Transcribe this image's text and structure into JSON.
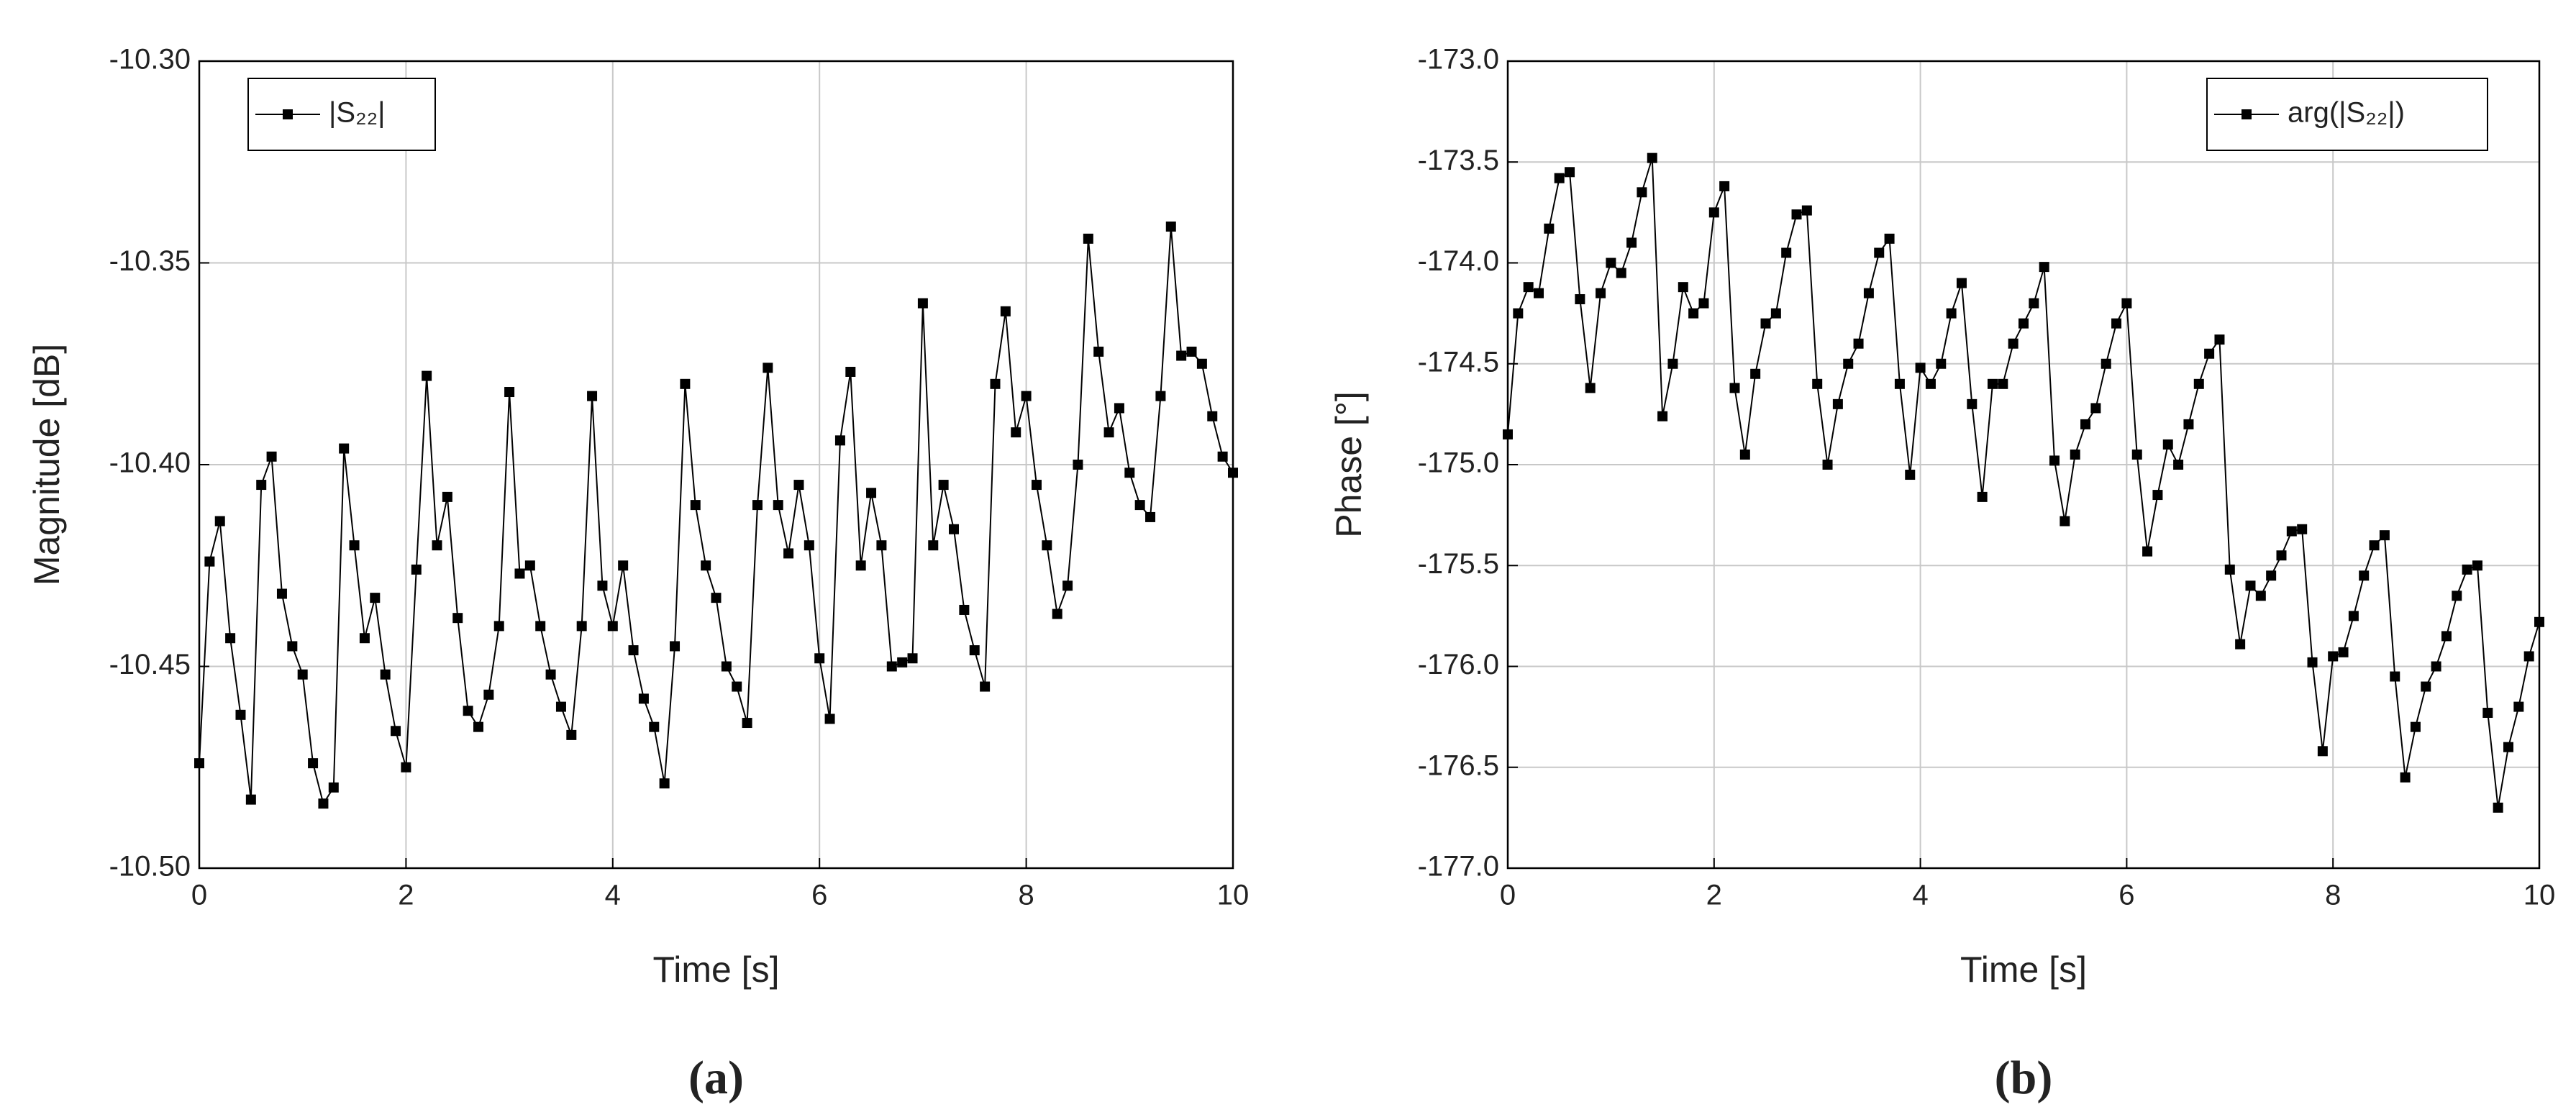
{
  "chart_data": [
    {
      "type": "line",
      "caption": "(a)",
      "xlabel": "Time [s]",
      "ylabel": "Magnitude [dB]",
      "x": [
        0,
        0.1,
        0.2,
        0.3,
        0.4,
        0.5,
        0.6,
        0.7,
        0.8,
        0.9,
        1,
        1.1,
        1.2,
        1.3,
        1.4,
        1.5,
        1.6,
        1.7,
        1.8,
        1.9,
        2,
        2.1,
        2.2,
        2.3,
        2.4,
        2.5,
        2.6,
        2.7,
        2.8,
        2.9,
        3,
        3.1,
        3.2,
        3.3,
        3.4,
        3.5,
        3.6,
        3.7,
        3.8,
        3.9,
        4,
        4.1,
        4.2,
        4.3,
        4.4,
        4.5,
        4.6,
        4.7,
        4.8,
        4.9,
        5,
        5.1,
        5.2,
        5.3,
        5.4,
        5.5,
        5.6,
        5.7,
        5.8,
        5.9,
        6,
        6.1,
        6.2,
        6.3,
        6.4,
        6.5,
        6.6,
        6.7,
        6.8,
        6.9,
        7,
        7.1,
        7.2,
        7.3,
        7.4,
        7.5,
        7.6,
        7.7,
        7.8,
        7.9,
        8,
        8.1,
        8.2,
        8.3,
        8.4,
        8.5,
        8.6,
        8.7,
        8.8,
        8.9,
        9,
        9.1,
        9.2,
        9.3,
        9.4,
        9.5,
        9.6,
        9.7,
        9.8,
        9.9,
        10
      ],
      "series": [
        {
          "name": "|S₂₂|",
          "color": "#000000",
          "values": [
            -10.474,
            -10.424,
            -10.414,
            -10.443,
            -10.462,
            -10.483,
            -10.405,
            -10.398,
            -10.432,
            -10.445,
            -10.452,
            -10.474,
            -10.484,
            -10.48,
            -10.396,
            -10.42,
            -10.443,
            -10.433,
            -10.452,
            -10.466,
            -10.475,
            -10.426,
            -10.378,
            -10.42,
            -10.408,
            -10.438,
            -10.461,
            -10.465,
            -10.457,
            -10.44,
            -10.382,
            -10.427,
            -10.425,
            -10.44,
            -10.452,
            -10.46,
            -10.467,
            -10.44,
            -10.383,
            -10.43,
            -10.44,
            -10.425,
            -10.446,
            -10.458,
            -10.465,
            -10.479,
            -10.445,
            -10.38,
            -10.41,
            -10.425,
            -10.433,
            -10.45,
            -10.455,
            -10.464,
            -10.41,
            -10.376,
            -10.41,
            -10.422,
            -10.405,
            -10.42,
            -10.448,
            -10.463,
            -10.394,
            -10.377,
            -10.425,
            -10.407,
            -10.42,
            -10.45,
            -10.449,
            -10.448,
            -10.36,
            -10.42,
            -10.405,
            -10.416,
            -10.436,
            -10.446,
            -10.455,
            -10.38,
            -10.362,
            -10.392,
            -10.383,
            -10.405,
            -10.42,
            -10.437,
            -10.43,
            -10.4,
            -10.344,
            -10.372,
            -10.392,
            -10.386,
            -10.402,
            -10.41,
            -10.413,
            -10.383,
            -10.341,
            -10.373,
            -10.372,
            -10.375,
            -10.388,
            -10.398,
            -10.402
          ]
        }
      ],
      "xlim": [
        0,
        10
      ],
      "xticks": [
        0,
        2,
        4,
        6,
        8,
        10
      ],
      "ylim": [
        -10.5,
        -10.3
      ],
      "yticks": [
        {
          "value": -10.5,
          "label": "-10.50"
        },
        -10.45,
        {
          "value": -10.4,
          "label": "-10.40"
        },
        -10.35,
        {
          "value": -10.3,
          "label": "-10.30"
        }
      ],
      "grid": true,
      "legend": "upper left"
    },
    {
      "type": "line",
      "caption": "(b)",
      "xlabel": "Time [s]",
      "ylabel": "Phase [°]",
      "x": [
        0,
        0.1,
        0.2,
        0.3,
        0.4,
        0.5,
        0.6,
        0.7,
        0.8,
        0.9,
        1,
        1.1,
        1.2,
        1.3,
        1.4,
        1.5,
        1.6,
        1.7,
        1.8,
        1.9,
        2,
        2.1,
        2.2,
        2.3,
        2.4,
        2.5,
        2.6,
        2.7,
        2.8,
        2.9,
        3,
        3.1,
        3.2,
        3.3,
        3.4,
        3.5,
        3.6,
        3.7,
        3.8,
        3.9,
        4,
        4.1,
        4.2,
        4.3,
        4.4,
        4.5,
        4.6,
        4.7,
        4.8,
        4.9,
        5,
        5.1,
        5.2,
        5.3,
        5.4,
        5.5,
        5.6,
        5.7,
        5.8,
        5.9,
        6,
        6.1,
        6.2,
        6.3,
        6.4,
        6.5,
        6.6,
        6.7,
        6.8,
        6.9,
        7,
        7.1,
        7.2,
        7.3,
        7.4,
        7.5,
        7.6,
        7.7,
        7.8,
        7.9,
        8,
        8.1,
        8.2,
        8.3,
        8.4,
        8.5,
        8.6,
        8.7,
        8.8,
        8.9,
        9,
        9.1,
        9.2,
        9.3,
        9.4,
        9.5,
        9.6,
        9.7,
        9.8,
        9.9,
        10
      ],
      "series": [
        {
          "name": "arg(|S₂₂|)",
          "color": "#000000",
          "values": [
            -174.85,
            -174.25,
            -174.12,
            -174.15,
            -173.83,
            -173.58,
            -173.55,
            -174.18,
            -174.62,
            -174.15,
            -174.0,
            -174.05,
            -173.9,
            -173.65,
            -173.48,
            -174.76,
            -174.5,
            -174.12,
            -174.25,
            -174.2,
            -173.75,
            -173.62,
            -174.62,
            -174.95,
            -174.55,
            -174.3,
            -174.25,
            -173.95,
            -173.76,
            -173.74,
            -174.6,
            -175.0,
            -174.7,
            -174.5,
            -174.4,
            -174.15,
            -173.95,
            -173.88,
            -174.6,
            -175.05,
            -174.52,
            -174.6,
            -174.5,
            -174.25,
            -174.1,
            -174.7,
            -175.16,
            -174.6,
            -174.6,
            -174.4,
            -174.3,
            -174.2,
            -174.02,
            -174.98,
            -175.28,
            -174.95,
            -174.8,
            -174.72,
            -174.5,
            -174.3,
            -174.2,
            -174.95,
            -175.43,
            -175.15,
            -174.9,
            -175.0,
            -174.8,
            -174.6,
            -174.45,
            -174.38,
            -175.52,
            -175.89,
            -175.6,
            -175.65,
            -175.55,
            -175.45,
            -175.33,
            -175.32,
            -175.98,
            -176.42,
            -175.95,
            -175.93,
            -175.75,
            -175.55,
            -175.4,
            -175.35,
            -176.05,
            -176.55,
            -176.3,
            -176.1,
            -176.0,
            -175.85,
            -175.65,
            -175.52,
            -175.5,
            -176.23,
            -176.7,
            -176.4,
            -176.2,
            -175.95,
            -175.78
          ]
        }
      ],
      "xlim": [
        0,
        10
      ],
      "xticks": [
        0,
        2,
        4,
        6,
        8,
        10
      ],
      "ylim": [
        -177,
        -173
      ],
      "yticks": [
        {
          "value": -177,
          "label": "-177.0"
        },
        -176.5,
        {
          "value": -176,
          "label": "-176.0"
        },
        -175.5,
        {
          "value": -175,
          "label": "-175.0"
        },
        -174.5,
        {
          "value": -174,
          "label": "-174.0"
        },
        -173.5,
        {
          "value": -173,
          "label": "-173.0"
        }
      ],
      "grid": true,
      "legend": "upper right"
    }
  ]
}
